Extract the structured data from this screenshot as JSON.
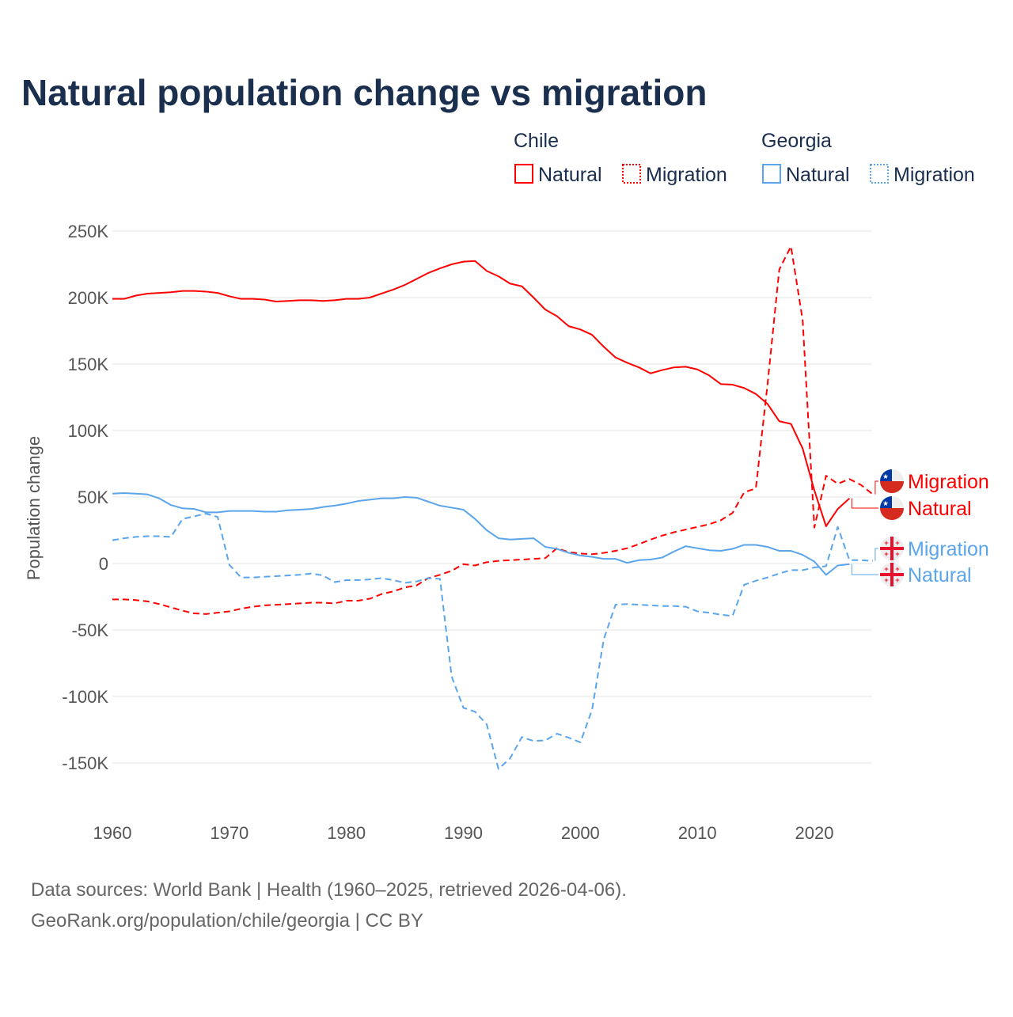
{
  "colors": {
    "chile": "#ff0000",
    "georgia": "#5aa5ec",
    "title": "#1a2e4d"
  },
  "chart_data": {
    "type": "line",
    "title": "Natural population change vs migration",
    "xlabel": "",
    "ylabel": "Population change",
    "xlim": [
      1960,
      2025
    ],
    "ylim": [
      -150000,
      250000
    ],
    "xticks": [
      {
        "v": 1960,
        "label": "1960"
      },
      {
        "v": 1970,
        "label": "1970"
      },
      {
        "v": 1980,
        "label": "1980"
      },
      {
        "v": 1990,
        "label": "1990"
      },
      {
        "v": 2000,
        "label": "2000"
      },
      {
        "v": 2010,
        "label": "2010"
      },
      {
        "v": 2020,
        "label": "2020"
      }
    ],
    "yticks": [
      {
        "v": 250000,
        "label": "250K"
      },
      {
        "v": 200000,
        "label": "200K"
      },
      {
        "v": 150000,
        "label": "150K"
      },
      {
        "v": 100000,
        "label": "100K"
      },
      {
        "v": 50000,
        "label": "50K"
      },
      {
        "v": 0,
        "label": "0"
      },
      {
        "v": -50000,
        "label": "-50K"
      },
      {
        "v": -100000,
        "label": "-100K"
      },
      {
        "v": -150000,
        "label": "-150K"
      }
    ],
    "grid": true,
    "legend": {
      "placement": "top-right",
      "groups": [
        {
          "name": "Chile",
          "items": [
            "Natural",
            "Migration"
          ]
        },
        {
          "name": "Georgia",
          "items": [
            "Natural",
            "Migration"
          ]
        }
      ]
    },
    "series": [
      {
        "name": "Chile Natural",
        "country": "Chile",
        "kind": "Natural",
        "start": 1960,
        "dashed": false,
        "color": "#ff0000",
        "values": [
          199,
          199,
          201.5,
          203,
          203.5,
          204,
          205,
          205,
          204.5,
          203.5,
          201,
          199,
          199,
          198.5,
          197,
          197.5,
          198,
          198,
          197.5,
          198,
          199,
          199,
          200,
          203,
          206,
          209.5,
          214,
          218.5,
          222,
          225,
          227,
          227.5,
          220,
          216,
          210.5,
          208.5,
          200,
          191,
          186,
          178.5,
          176,
          172,
          163,
          155,
          151,
          147.5,
          143,
          145.5,
          147.5,
          148,
          146,
          141.5,
          135,
          134.5,
          132,
          127.5,
          120,
          107,
          105,
          86.5,
          55,
          28,
          41,
          49
        ]
      },
      {
        "name": "Chile Migration",
        "country": "Chile",
        "kind": "Migration",
        "start": 1960,
        "dashed": true,
        "color": "#ff0000",
        "values": [
          -27,
          -27,
          -27.5,
          -28.5,
          -30.5,
          -33,
          -35.5,
          -37.5,
          -38,
          -37,
          -36,
          -34,
          -32.5,
          -31.5,
          -31,
          -30.5,
          -30,
          -29.5,
          -29.5,
          -30,
          -28,
          -28,
          -26.5,
          -23,
          -21,
          -18,
          -16.5,
          -11,
          -8.5,
          -5.5,
          -0.5,
          -1.5,
          1,
          2,
          2.5,
          3,
          3.5,
          4,
          11.5,
          8.5,
          7.5,
          7,
          8,
          9.5,
          11.5,
          14.5,
          18,
          21,
          23.5,
          25.5,
          27.5,
          29.5,
          32.5,
          38,
          53.5,
          56.5,
          135,
          221,
          238.5,
          183,
          27,
          66,
          60,
          63.5,
          59,
          52
        ]
      },
      {
        "name": "Georgia Natural",
        "country": "Georgia",
        "kind": "Natural",
        "start": 1960,
        "dashed": false,
        "color": "#5aa5ec",
        "values": [
          52.5,
          53,
          52.5,
          52,
          49,
          44,
          41.5,
          41,
          38.5,
          38.5,
          39.5,
          39.5,
          39.5,
          39,
          39,
          40,
          40.5,
          41,
          42.5,
          43.5,
          45,
          47,
          48,
          49,
          49,
          50,
          49.5,
          46.5,
          43.5,
          42,
          40.5,
          33.5,
          25,
          19,
          18,
          18.5,
          19,
          12.5,
          11,
          8,
          6,
          5,
          3.5,
          3.5,
          0.5,
          2.5,
          3,
          4.5,
          9,
          13,
          11.5,
          10,
          9.5,
          11,
          14,
          14,
          12.5,
          9.5,
          9.5,
          6.5,
          1.5,
          -8.5,
          -1.5,
          -0.5
        ]
      },
      {
        "name": "Georgia Migration",
        "country": "Georgia",
        "kind": "Migration",
        "start": 1960,
        "dashed": true,
        "color": "#5aa5ec",
        "values": [
          17.5,
          19,
          20,
          20.5,
          20.5,
          20,
          33.5,
          35.5,
          37.5,
          35,
          -1,
          -10.5,
          -10.5,
          -10,
          -9.5,
          -9,
          -8.5,
          -7.5,
          -9,
          -14,
          -12.5,
          -12.5,
          -12,
          -11,
          -12.5,
          -14.5,
          -13.5,
          -11,
          -11.5,
          -85,
          -108.5,
          -111.5,
          -121,
          -154.5,
          -146.5,
          -130.5,
          -133.5,
          -133,
          -128,
          -131,
          -134.5,
          -110,
          -57,
          -31,
          -30.5,
          -31,
          -31.5,
          -32,
          -32,
          -32.5,
          -36,
          -37,
          -38.5,
          -39.5,
          -16,
          -13,
          -10.5,
          -7.5,
          -5,
          -5,
          -3,
          -2,
          27.5,
          2.5,
          2.5,
          2
        ]
      }
    ],
    "value_unit": "thousands",
    "end_labels": [
      {
        "series": "Chile Migration",
        "text": "Migration",
        "flag": "chile"
      },
      {
        "series": "Chile Natural",
        "text": "Natural",
        "flag": "chile"
      },
      {
        "series": "Georgia Migration",
        "text": "Migration",
        "flag": "georgia"
      },
      {
        "series": "Georgia Natural",
        "text": "Natural",
        "flag": "georgia"
      }
    ]
  },
  "legend": {
    "chile": "Chile",
    "georgia": "Georgia",
    "natural": "Natural",
    "migration": "Migration"
  },
  "footer": {
    "line1": "Data sources: World Bank | Health (1960–2025, retrieved 2026-04-06).",
    "line2": "GeoRank.org/population/chile/georgia | CC BY"
  }
}
